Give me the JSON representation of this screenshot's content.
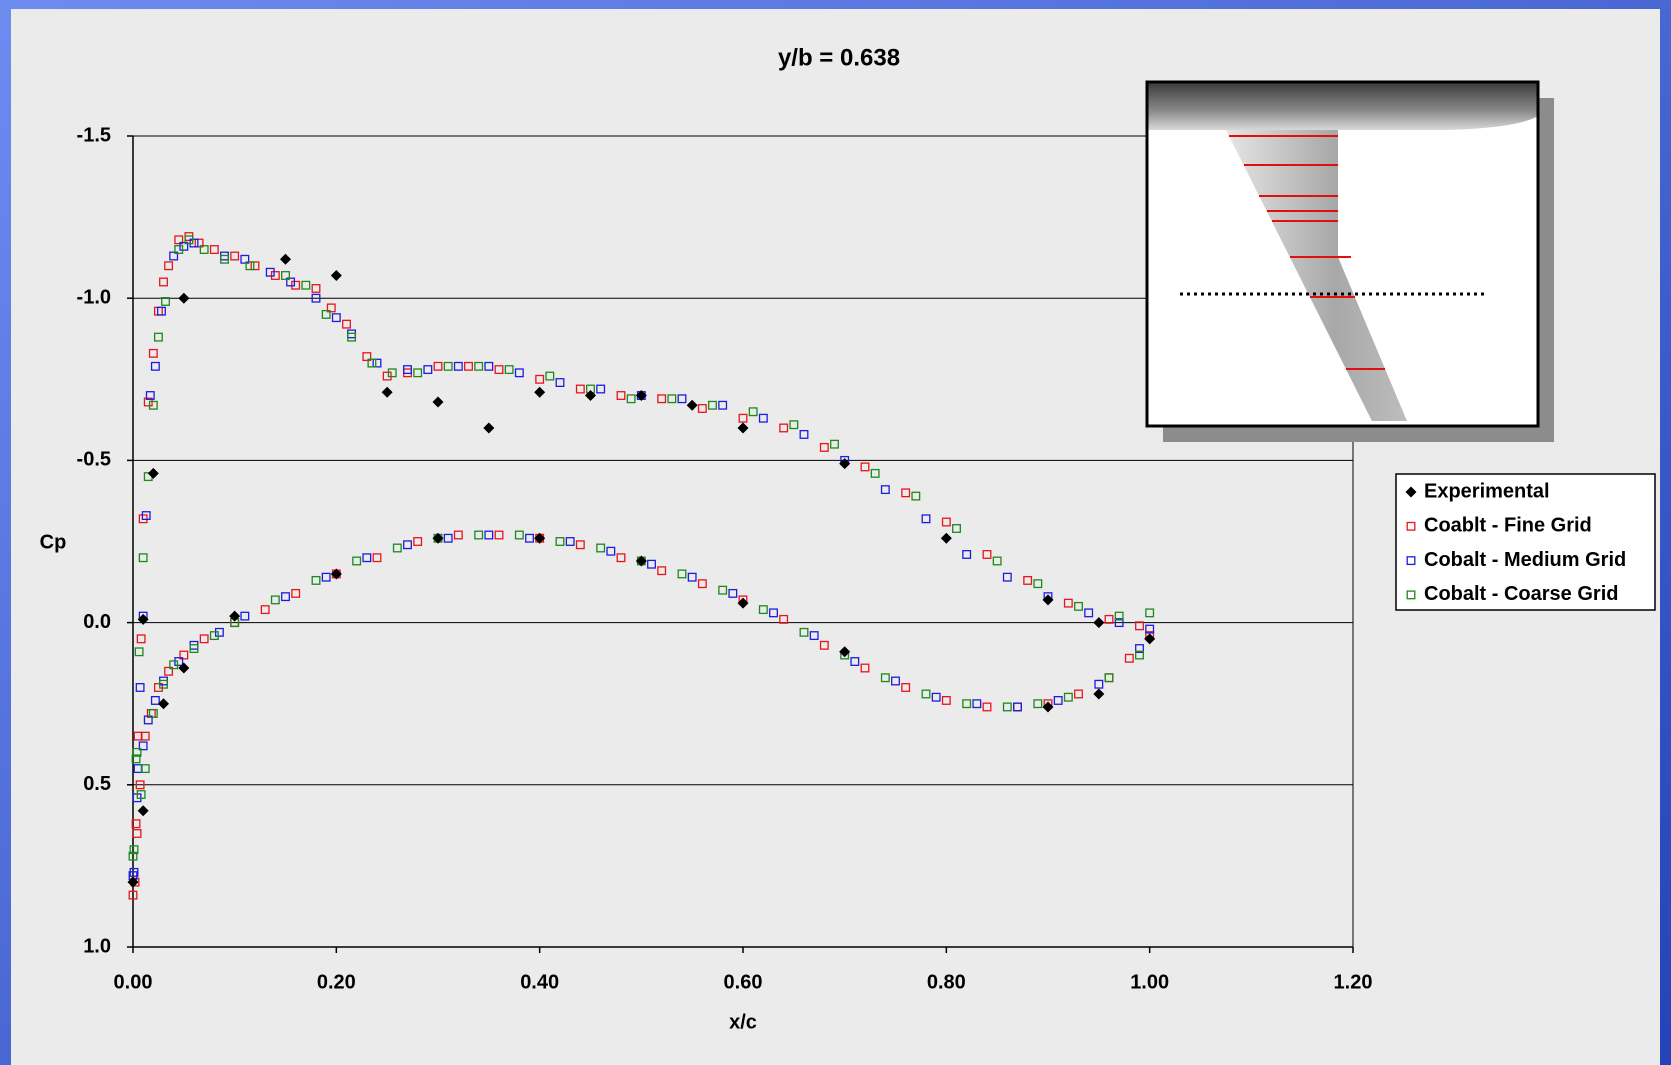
{
  "chart_data": {
    "type": "scatter",
    "title": "y/b = 0.638",
    "x_label": "x/c",
    "y_label": "Cp",
    "xlim": [
      0,
      1.2
    ],
    "ylim": [
      -1.5,
      1.0
    ],
    "y_inverted": true,
    "grid": true,
    "legend": "right",
    "xticks": [
      {
        "value": 0,
        "label": "0.00"
      },
      {
        "value": 0.2,
        "label": "0.20"
      },
      {
        "value": 0.4,
        "label": "0.40"
      },
      {
        "value": 0.6,
        "label": "0.60"
      },
      {
        "value": 0.8,
        "label": "0.80"
      },
      {
        "value": 1.0,
        "label": "1.00"
      },
      {
        "value": 1.2,
        "label": "1.20"
      }
    ],
    "yticks": [
      -1.5,
      {
        "value": -1.0,
        "label": "-1.0"
      },
      -0.5,
      {
        "value": 0,
        "label": "0.0"
      },
      0.5,
      {
        "value": 1.0,
        "label": "1.0"
      }
    ],
    "series": [
      {
        "name": "Experimental",
        "color": "#000000",
        "marker": "diamond",
        "x": [
          0.05,
          0.15,
          0.2,
          0.25,
          0.3,
          0.35,
          0.4,
          0.45,
          0.5,
          0.55,
          0.6,
          0.7,
          0.8,
          0.9,
          0.95,
          1.0,
          0.0,
          0.01,
          0.01,
          0.02,
          0.03,
          0.05,
          0.1,
          0.2,
          0.3,
          0.4,
          0.5,
          0.6,
          0.7,
          0.9,
          0.95
        ],
        "values": [
          -1.0,
          -1.12,
          -1.07,
          -0.71,
          -0.68,
          -0.6,
          -0.71,
          -0.7,
          -0.7,
          -0.67,
          -0.6,
          -0.49,
          -0.26,
          -0.07,
          0.0,
          0.05,
          0.8,
          0.58,
          -0.01,
          -0.46,
          0.25,
          0.14,
          -0.02,
          -0.15,
          -0.26,
          -0.26,
          -0.19,
          -0.06,
          0.09,
          0.26,
          0.22
        ]
      },
      {
        "name": "Coablt - Fine Grid",
        "color": "#e8141c",
        "marker": "square",
        "x": [
          0.0,
          0.003,
          0.005,
          0.008,
          0.01,
          0.015,
          0.02,
          0.025,
          0.03,
          0.035,
          0.045,
          0.055,
          0.065,
          0.08,
          0.1,
          0.12,
          0.14,
          0.16,
          0.18,
          0.195,
          0.21,
          0.23,
          0.25,
          0.27,
          0.3,
          0.33,
          0.36,
          0.4,
          0.44,
          0.48,
          0.52,
          0.56,
          0.6,
          0.64,
          0.68,
          0.72,
          0.76,
          0.8,
          0.84,
          0.88,
          0.92,
          0.96,
          0.99,
          0.002,
          0.004,
          0.007,
          0.012,
          0.018,
          0.025,
          0.035,
          0.05,
          0.07,
          0.1,
          0.13,
          0.16,
          0.2,
          0.24,
          0.28,
          0.32,
          0.36,
          0.4,
          0.44,
          0.48,
          0.52,
          0.56,
          0.6,
          0.64,
          0.68,
          0.72,
          0.76,
          0.8,
          0.84,
          0.87,
          0.9,
          0.93,
          0.96,
          0.98,
          1.0
        ],
        "values": [
          0.84,
          0.62,
          0.35,
          0.05,
          -0.32,
          -0.68,
          -0.83,
          -0.96,
          -1.05,
          -1.1,
          -1.18,
          -1.19,
          -1.17,
          -1.15,
          -1.13,
          -1.1,
          -1.07,
          -1.04,
          -1.03,
          -0.97,
          -0.92,
          -0.82,
          -0.76,
          -0.77,
          -0.79,
          -0.79,
          -0.78,
          -0.75,
          -0.72,
          -0.7,
          -0.69,
          -0.66,
          -0.63,
          -0.6,
          -0.54,
          -0.48,
          -0.4,
          -0.31,
          -0.21,
          -0.13,
          -0.06,
          -0.01,
          0.01,
          0.8,
          0.65,
          0.5,
          0.35,
          0.28,
          0.2,
          0.15,
          0.1,
          0.05,
          0.0,
          -0.04,
          -0.09,
          -0.15,
          -0.2,
          -0.25,
          -0.27,
          -0.27,
          -0.26,
          -0.24,
          -0.2,
          -0.16,
          -0.12,
          -0.07,
          -0.01,
          0.07,
          0.14,
          0.2,
          0.24,
          0.26,
          0.26,
          0.25,
          0.22,
          0.17,
          0.11,
          0.04
        ]
      },
      {
        "name": "Cobalt - Medium Grid",
        "color": "#1c1ce0",
        "marker": "square",
        "x": [
          0.0,
          0.004,
          0.007,
          0.01,
          0.013,
          0.017,
          0.022,
          0.028,
          0.04,
          0.05,
          0.06,
          0.09,
          0.11,
          0.135,
          0.155,
          0.18,
          0.2,
          0.215,
          0.24,
          0.27,
          0.29,
          0.32,
          0.35,
          0.38,
          0.42,
          0.46,
          0.5,
          0.54,
          0.58,
          0.62,
          0.66,
          0.7,
          0.74,
          0.78,
          0.82,
          0.86,
          0.9,
          0.94,
          0.97,
          1.0,
          0.001,
          0.005,
          0.01,
          0.015,
          0.022,
          0.03,
          0.045,
          0.06,
          0.085,
          0.11,
          0.15,
          0.19,
          0.23,
          0.27,
          0.31,
          0.35,
          0.39,
          0.43,
          0.47,
          0.51,
          0.55,
          0.59,
          0.63,
          0.67,
          0.71,
          0.75,
          0.79,
          0.83,
          0.87,
          0.91,
          0.95,
          0.99
        ],
        "values": [
          0.78,
          0.54,
          0.2,
          -0.02,
          -0.33,
          -0.7,
          -0.79,
          -0.96,
          -1.13,
          -1.16,
          -1.17,
          -1.13,
          -1.12,
          -1.08,
          -1.05,
          -1.0,
          -0.94,
          -0.89,
          -0.8,
          -0.78,
          -0.78,
          -0.79,
          -0.79,
          -0.77,
          -0.74,
          -0.72,
          -0.7,
          -0.69,
          -0.67,
          -0.63,
          -0.58,
          -0.5,
          -0.41,
          -0.32,
          -0.21,
          -0.14,
          -0.08,
          -0.03,
          0.0,
          0.02,
          0.77,
          0.45,
          0.38,
          0.3,
          0.24,
          0.18,
          0.12,
          0.07,
          0.03,
          -0.02,
          -0.08,
          -0.14,
          -0.2,
          -0.24,
          -0.26,
          -0.27,
          -0.26,
          -0.25,
          -0.22,
          -0.18,
          -0.14,
          -0.09,
          -0.03,
          0.04,
          0.12,
          0.18,
          0.23,
          0.25,
          0.26,
          0.24,
          0.19,
          0.08
        ]
      },
      {
        "name": "Cobalt - Coarse Grid",
        "color": "#1a8a1a",
        "marker": "square",
        "x": [
          0.0,
          0.003,
          0.006,
          0.01,
          0.015,
          0.02,
          0.025,
          0.032,
          0.045,
          0.055,
          0.07,
          0.09,
          0.115,
          0.15,
          0.17,
          0.19,
          0.215,
          0.235,
          0.255,
          0.28,
          0.31,
          0.34,
          0.37,
          0.41,
          0.45,
          0.49,
          0.53,
          0.57,
          0.61,
          0.65,
          0.69,
          0.73,
          0.77,
          0.81,
          0.85,
          0.89,
          0.93,
          0.97,
          1.0,
          0.001,
          0.004,
          0.008,
          0.012,
          0.02,
          0.03,
          0.04,
          0.06,
          0.08,
          0.1,
          0.14,
          0.18,
          0.22,
          0.26,
          0.3,
          0.34,
          0.38,
          0.42,
          0.46,
          0.5,
          0.54,
          0.58,
          0.62,
          0.66,
          0.7,
          0.74,
          0.78,
          0.82,
          0.86,
          0.89,
          0.92,
          0.96,
          0.99
        ],
        "values": [
          0.72,
          0.42,
          0.09,
          -0.2,
          -0.45,
          -0.67,
          -0.88,
          -0.99,
          -1.15,
          -1.18,
          -1.15,
          -1.12,
          -1.1,
          -1.07,
          -1.04,
          -0.95,
          -0.88,
          -0.8,
          -0.77,
          -0.77,
          -0.79,
          -0.79,
          -0.78,
          -0.76,
          -0.72,
          -0.69,
          -0.69,
          -0.67,
          -0.65,
          -0.61,
          -0.55,
          -0.46,
          -0.39,
          -0.29,
          -0.19,
          -0.12,
          -0.05,
          -0.02,
          -0.03,
          0.7,
          0.4,
          0.53,
          0.45,
          0.28,
          0.19,
          0.13,
          0.08,
          0.04,
          0.0,
          -0.07,
          -0.13,
          -0.19,
          -0.23,
          -0.26,
          -0.27,
          -0.27,
          -0.25,
          -0.23,
          -0.19,
          -0.15,
          -0.1,
          -0.04,
          0.03,
          0.1,
          0.17,
          0.22,
          0.25,
          0.26,
          0.25,
          0.23,
          0.17,
          0.1
        ]
      }
    ]
  }
}
